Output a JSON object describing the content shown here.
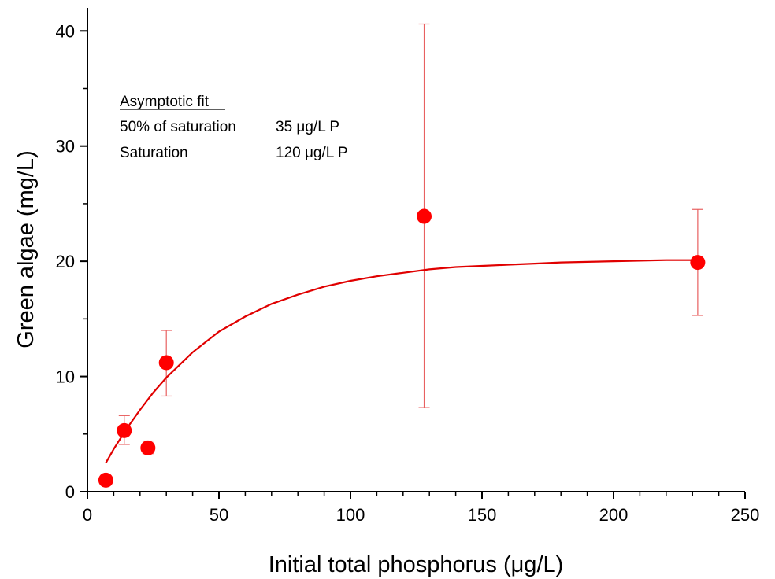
{
  "chart_data": {
    "type": "scatter",
    "title": "",
    "xlabel": "Initial total phosphorus (μg/L)",
    "ylabel": "Green algae (mg/L)",
    "xlim": [
      0,
      250
    ],
    "ylim": [
      0,
      42
    ],
    "x_ticks": [
      "0",
      "50",
      "100",
      "150",
      "200",
      "250"
    ],
    "y_ticks": [
      "0",
      "10",
      "20",
      "30",
      "40"
    ],
    "grid": false,
    "colors": {
      "points": "#ff0000",
      "fit": "#e00000",
      "error_bars": "#e86060",
      "axes": "#000000"
    },
    "series": [
      {
        "points": [
          {
            "x": 7,
            "y": 1.0,
            "err_low": 1.0,
            "err_high": 1.0
          },
          {
            "x": 14,
            "y": 5.3,
            "err_low": 4.1,
            "err_high": 6.6
          },
          {
            "x": 23,
            "y": 3.8,
            "err_low": 3.3,
            "err_high": 4.4
          },
          {
            "x": 30,
            "y": 11.2,
            "err_low": 8.3,
            "err_high": 14.0
          },
          {
            "x": 128,
            "y": 23.9,
            "err_low": 7.3,
            "err_high": 40.6
          },
          {
            "x": 232,
            "y": 19.9,
            "err_low": 15.3,
            "err_high": 24.5
          }
        ]
      }
    ],
    "fit": {
      "type": "asymptotic",
      "x": [
        7,
        10,
        15,
        20,
        25,
        30,
        40,
        50,
        60,
        70,
        80,
        90,
        100,
        110,
        120,
        130,
        140,
        150,
        160,
        170,
        180,
        190,
        200,
        210,
        220,
        232
      ],
      "y": [
        2.5,
        3.7,
        5.5,
        7.1,
        8.6,
        9.9,
        12.1,
        13.9,
        15.2,
        16.3,
        17.1,
        17.8,
        18.3,
        18.7,
        19.0,
        19.3,
        19.5,
        19.6,
        19.7,
        19.8,
        19.9,
        19.95,
        20.0,
        20.05,
        20.1,
        20.1
      ]
    },
    "annotations": {
      "heading": "Asymptotic fit",
      "rows": [
        {
          "label": "50% of saturation",
          "value": "35 μg/L P"
        },
        {
          "label": "Saturation",
          "value": "120 μg/L P"
        }
      ]
    }
  }
}
